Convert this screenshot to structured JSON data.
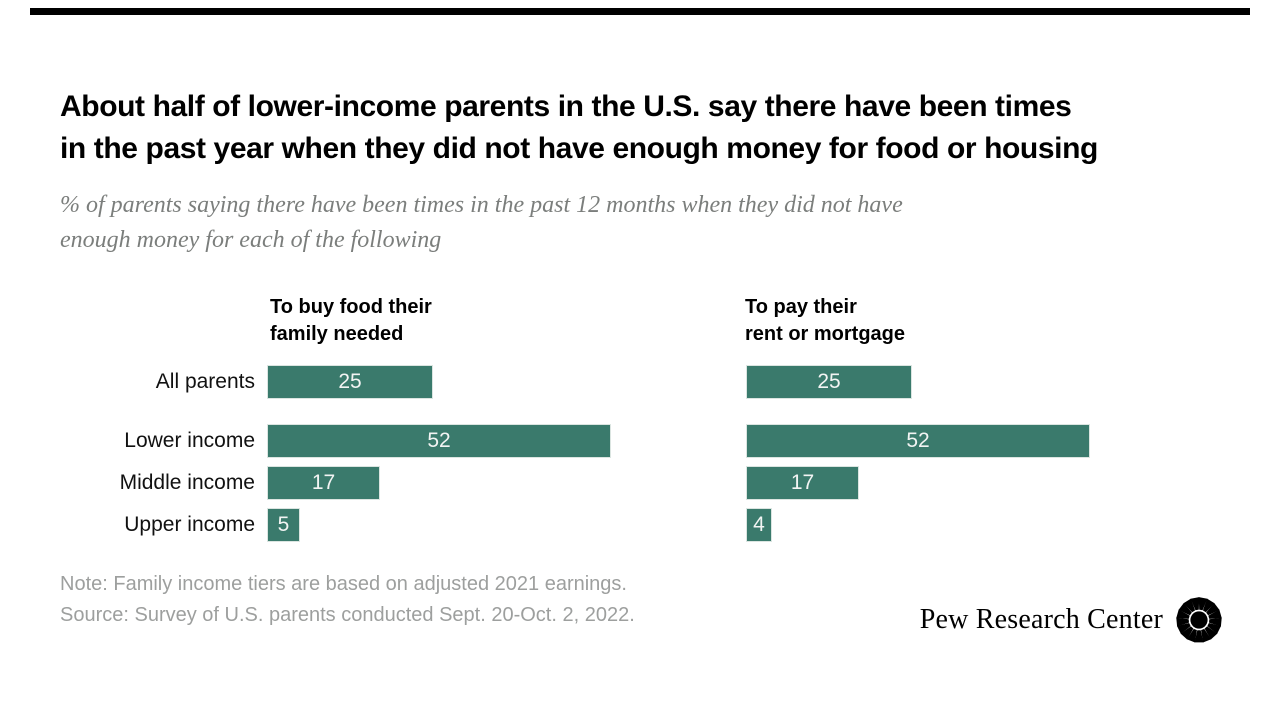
{
  "page": {
    "background": "#ffffff",
    "accent_bar_color": "#000000"
  },
  "title": {
    "text": "About half of lower-income parents in the U.S. say there have been times\nin the past year when they did not have enough money for food or housing"
  },
  "subtitle": {
    "text": "% of parents saying there have been times in the past 12 months when they did not have\nenough money for each of the following"
  },
  "chart_data": {
    "type": "bar",
    "orientation": "horizontal",
    "unit": "percent",
    "bar_color": "#3A7A6C",
    "value_label_color": "#F2F4F3",
    "value_label_position": "inside-center",
    "axes_hidden": true,
    "xlim": [
      0,
      52
    ],
    "categories": [
      "All parents",
      "Lower income",
      "Middle income",
      "Upper income"
    ],
    "groups": [
      {
        "title": "To buy food their\nfamily needed",
        "values": [
          25,
          52,
          17,
          5
        ]
      },
      {
        "title": "To pay their\nrent or mortgage",
        "values": [
          25,
          52,
          17,
          4
        ]
      }
    ]
  },
  "note": {
    "note_line": "Note: Family income tiers are based on adjusted 2021 earnings.",
    "source_line": "Source: Survey of U.S. parents conducted Sept. 20-Oct. 2, 2022."
  },
  "branding": {
    "wordmark": "Pew Research Center",
    "logo": "pew-starburst-icon"
  }
}
